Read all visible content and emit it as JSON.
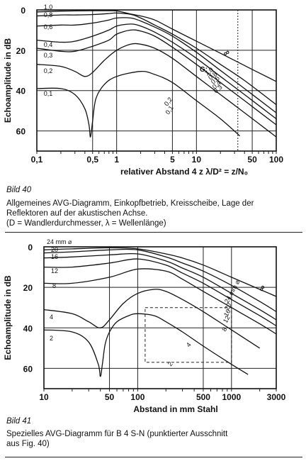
{
  "chart_data": [
    {
      "type": "line",
      "title": "",
      "xlabel": "relativer Abstand 4 z λ/D² = z/N₀",
      "ylabel": "Echoamplitude in dB",
      "xscale": "log",
      "xlim": [
        0.1,
        100
      ],
      "ylim": [
        0,
        70
      ],
      "y_inverted": true,
      "xticks": [
        0.1,
        0.5,
        1,
        5,
        10,
        50,
        100
      ],
      "xtick_labels": [
        "0,1",
        "0,5",
        "1",
        "5",
        "10",
        "50",
        "100"
      ],
      "yticks": [
        0,
        20,
        40,
        60
      ],
      "ytick_labels": [
        "0",
        "20",
        "40",
        "60"
      ],
      "grid": true,
      "reference_line_x": 33,
      "series": [
        {
          "name": "1,0",
          "x": [
            0.1,
            0.2,
            0.3,
            0.5,
            0.8,
            1,
            1.5,
            2,
            3,
            5,
            10,
            20,
            50,
            100
          ],
          "y": [
            1,
            0.6,
            0.5,
            0.4,
            0.4,
            0.5,
            2,
            3,
            5,
            9.5,
            15.5,
            21.5,
            29.5,
            35.5
          ]
        },
        {
          "name": "0,8",
          "x": [
            0.1,
            0.2,
            0.3,
            0.5,
            0.8,
            1,
            1.5,
            2,
            3,
            5,
            10,
            20,
            40,
            100
          ],
          "y": [
            3,
            2.5,
            2.5,
            2.3,
            1.8,
            1.5,
            2.2,
            4,
            7.5,
            12,
            19,
            27,
            35,
            47
          ]
        },
        {
          "name": "0,6",
          "x": [
            0.1,
            0.2,
            0.3,
            0.5,
            0.8,
            1,
            1.5,
            2,
            3,
            5,
            10,
            20,
            40,
            100
          ],
          "y": [
            8,
            7.5,
            7.5,
            6.5,
            5,
            4,
            4,
            5.5,
            8.5,
            13,
            21,
            30,
            39,
            51
          ]
        },
        {
          "name": "0,4",
          "x": [
            0.1,
            0.2,
            0.3,
            0.5,
            0.8,
            1,
            1.5,
            2,
            3,
            5,
            10,
            20,
            40,
            100
          ],
          "y": [
            15,
            16,
            15.5,
            13,
            10,
            8,
            7,
            8,
            11,
            16,
            24,
            33,
            42,
            54
          ]
        },
        {
          "name": "0,3",
          "x": [
            0.1,
            0.2,
            0.3,
            0.5,
            0.8,
            1,
            1.5,
            2,
            3,
            5,
            10,
            20,
            40,
            100
          ],
          "y": [
            19,
            20.5,
            20.5,
            18,
            15,
            12,
            10,
            10.5,
            13,
            18.5,
            27,
            36,
            45,
            57
          ]
        },
        {
          "name": "0,2",
          "x": [
            0.1,
            0.2,
            0.3,
            0.4,
            0.5,
            0.7,
            1,
            1.5,
            2,
            3,
            5,
            10,
            20,
            40,
            100
          ],
          "y": [
            27,
            28,
            30.5,
            33,
            31,
            25,
            20,
            17,
            17,
            19,
            24,
            33,
            42,
            51,
            63
          ]
        },
        {
          "name": "0,1",
          "x": [
            0.1,
            0.2,
            0.3,
            0.4,
            0.45,
            0.47,
            0.5,
            0.55,
            0.7,
            1,
            2,
            3,
            5,
            10,
            20,
            35
          ],
          "y": [
            39,
            39,
            42,
            49,
            57,
            63,
            55,
            44,
            37,
            33,
            30.5,
            32,
            36,
            45,
            54,
            62.5
          ]
        }
      ],
      "curve_labels": [
        "∞",
        "G:",
        "1,0",
        "0,8",
        "0,6",
        "0,4",
        "0,3",
        "0,2",
        "0,1"
      ],
      "caption_number": "Bild 40",
      "caption_lines": [
        "Allgemeines AVG-Diagramm, Einkopfbetrieb, Kreisscheibe, Lage der",
        "Reflektoren auf der akustischen Achse.",
        "(D = Wandlerdurchmesser, λ = Wellenlänge)"
      ]
    },
    {
      "type": "line",
      "title": "",
      "xlabel": "Abstand in mm Stahl",
      "ylabel": "Echoamplitude in dB",
      "xscale": "log",
      "xlim": [
        10,
        3000
      ],
      "ylim": [
        0,
        70
      ],
      "y_inverted": true,
      "xticks": [
        10,
        50,
        100,
        500,
        1000,
        3000
      ],
      "xtick_labels": [
        "10",
        "50",
        "100",
        "500",
        "1000",
        "3000"
      ],
      "yticks": [
        0,
        20,
        40,
        60
      ],
      "ytick_labels": [
        "0",
        "20",
        "40",
        "60"
      ],
      "grid": true,
      "dashed_box": {
        "x": [
          120,
          1000
        ],
        "y": [
          30,
          57
        ]
      },
      "series": [
        {
          "name": "24 mm ⌀",
          "x": [
            10,
            20,
            50,
            100,
            200,
            300,
            500,
            1000,
            2000,
            3000
          ],
          "y": [
            1.5,
            1,
            0.5,
            1,
            3.5,
            5.5,
            9,
            15,
            21,
            24.5
          ]
        },
        {
          "name": "20",
          "x": [
            10,
            20,
            50,
            100,
            200,
            300,
            500,
            1000,
            2000,
            3000
          ],
          "y": [
            3,
            2.5,
            1.5,
            1.5,
            5,
            8,
            12,
            19,
            27,
            32
          ]
        },
        {
          "name": "16",
          "x": [
            10,
            20,
            50,
            100,
            200,
            300,
            500,
            1000,
            2000,
            3000
          ],
          "y": [
            5.5,
            5,
            4,
            3.5,
            7,
            10.5,
            15,
            23,
            31,
            36
          ]
        },
        {
          "name": "12",
          "x": [
            10,
            20,
            50,
            100,
            200,
            300,
            500,
            1000,
            2000,
            3000
          ],
          "y": [
            10,
            10,
            8,
            6,
            9,
            13,
            18,
            26,
            34,
            39
          ]
        },
        {
          "name": "8",
          "x": [
            10,
            20,
            50,
            100,
            200,
            300,
            500,
            1000,
            2000,
            3000
          ],
          "y": [
            18,
            18,
            15,
            11,
            12,
            16,
            22,
            30,
            38,
            43
          ]
        },
        {
          "name": "4",
          "x": [
            10,
            20,
            30,
            40,
            50,
            70,
            100,
            150,
            200,
            300,
            500,
            1000,
            2000
          ],
          "y": [
            31,
            33,
            37,
            40,
            36,
            28,
            23,
            21,
            22,
            26,
            32,
            41,
            50
          ]
        },
        {
          "name": "2",
          "x": [
            10,
            20,
            30,
            38,
            40,
            42,
            45,
            50,
            60,
            80,
            100,
            150,
            200,
            300,
            500,
            1000,
            1500
          ],
          "y": [
            41,
            42,
            47,
            58,
            64,
            58,
            48,
            42,
            37,
            34,
            33,
            34,
            37,
            42,
            49,
            58,
            63
          ]
        }
      ],
      "curve_labels": [
        "24 mm ⌀",
        "20",
        "16",
        "12",
        "8",
        "4",
        "2",
        "∞",
        "24 mm ⌀",
        "20",
        "16",
        "12",
        "8",
        "4",
        "2"
      ],
      "caption_number": "Bild 41",
      "caption_lines": [
        "Spezielles AVG-Diagramm für B 4 S-N (punktierter Ausschnitt",
        "aus Fig. 40)"
      ]
    }
  ]
}
